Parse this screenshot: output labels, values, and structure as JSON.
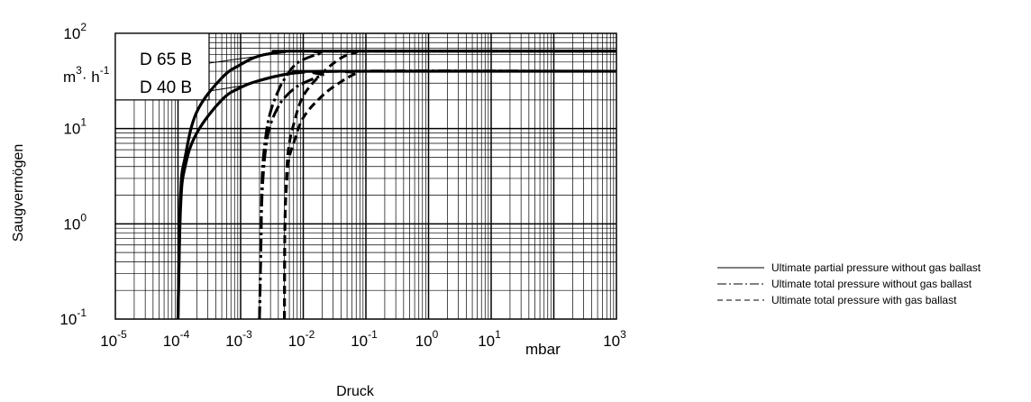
{
  "chart_data": {
    "type": "line",
    "title": "",
    "xlabel": "Druck",
    "ylabel": "Saugvermögen",
    "x_unit": "mbar",
    "y_unit": {
      "base": "m³·h",
      "exp": "-1",
      "prefix": "m",
      "prefix_exp": "3",
      "mid": "· h"
    },
    "x_scale": "log",
    "y_scale": "log",
    "xlim": [
      1e-05,
      1000
    ],
    "ylim": [
      0.1,
      100
    ],
    "grid": true,
    "x_ticks": [
      {
        "base": "10",
        "exp": "-5",
        "value": 1e-05
      },
      {
        "base": "10",
        "exp": "-4",
        "value": 0.0001
      },
      {
        "base": "10",
        "exp": "-3",
        "value": 0.001
      },
      {
        "base": "10",
        "exp": "-2",
        "value": 0.01
      },
      {
        "base": "10",
        "exp": "-1",
        "value": 0.1
      },
      {
        "base": "10",
        "exp": "0",
        "value": 1
      },
      {
        "base": "10",
        "exp": "1",
        "value": 10
      },
      {
        "base": "10",
        "exp": "3",
        "value": 1000
      }
    ],
    "y_ticks": [
      {
        "base": "10",
        "exp": "-1",
        "value": 0.1
      },
      {
        "base": "10",
        "exp": "0",
        "value": 1
      },
      {
        "base": "10",
        "exp": "1",
        "value": 10
      },
      {
        "base": "10",
        "exp": "2",
        "value": 100
      }
    ],
    "curve_labels": [
      {
        "text": "D 65 B",
        "target_y": 65
      },
      {
        "text": "D 40 B",
        "target_y": 40
      }
    ],
    "series": [
      {
        "style": "solid",
        "model": "D 65 B",
        "p0": 0.0001,
        "vmax": 65,
        "points": [
          [
            0.0001,
            0.1
          ],
          [
            0.00011,
            2
          ],
          [
            0.00013,
            5
          ],
          [
            0.0002,
            15
          ],
          [
            0.0005,
            34
          ],
          [
            0.001,
            47
          ],
          [
            0.002,
            58
          ],
          [
            0.005,
            64
          ],
          [
            0.01,
            65
          ],
          [
            1000,
            65
          ]
        ]
      },
      {
        "style": "solid",
        "model": "D 40 B",
        "p0": 0.0001,
        "vmax": 40,
        "points": [
          [
            0.0001,
            0.1
          ],
          [
            0.00011,
            1.5
          ],
          [
            0.00013,
            4
          ],
          [
            0.0002,
            9
          ],
          [
            0.0005,
            20
          ],
          [
            0.001,
            27
          ],
          [
            0.002,
            32
          ],
          [
            0.005,
            37
          ],
          [
            0.01,
            39
          ],
          [
            0.02,
            40
          ],
          [
            1000,
            40
          ]
        ]
      },
      {
        "style": "dashdot",
        "model": "D 65 B",
        "p0": 0.002,
        "vmax": 65,
        "points": [
          [
            0.002,
            0.1
          ],
          [
            0.0021,
            0.5
          ],
          [
            0.0022,
            3
          ],
          [
            0.0025,
            8
          ],
          [
            0.003,
            15
          ],
          [
            0.004,
            25
          ],
          [
            0.005,
            33
          ],
          [
            0.007,
            45
          ],
          [
            0.01,
            53
          ],
          [
            0.02,
            62
          ],
          [
            0.04,
            65
          ],
          [
            1000,
            65
          ]
        ]
      },
      {
        "style": "dashdot",
        "model": "D 40 B",
        "p0": 0.002,
        "vmax": 40,
        "points": [
          [
            0.002,
            0.1
          ],
          [
            0.0021,
            0.5
          ],
          [
            0.0022,
            2
          ],
          [
            0.0025,
            6
          ],
          [
            0.003,
            11
          ],
          [
            0.004,
            17
          ],
          [
            0.005,
            21
          ],
          [
            0.007,
            26
          ],
          [
            0.01,
            30
          ],
          [
            0.02,
            36
          ],
          [
            0.04,
            40
          ],
          [
            1000,
            40
          ]
        ]
      },
      {
        "style": "dashed",
        "model": "D 65 B",
        "p0": 0.005,
        "vmax": 65,
        "points": [
          [
            0.005,
            0.1
          ],
          [
            0.0051,
            1
          ],
          [
            0.0055,
            4
          ],
          [
            0.006,
            7
          ],
          [
            0.007,
            11
          ],
          [
            0.01,
            22
          ],
          [
            0.02,
            38
          ],
          [
            0.04,
            55
          ],
          [
            0.07,
            63
          ],
          [
            0.1,
            65
          ],
          [
            1000,
            65
          ]
        ]
      },
      {
        "style": "dashed",
        "model": "D 40 B",
        "p0": 0.005,
        "vmax": 40,
        "points": [
          [
            0.005,
            0.1
          ],
          [
            0.0051,
            1
          ],
          [
            0.0055,
            3
          ],
          [
            0.006,
            5
          ],
          [
            0.007,
            7
          ],
          [
            0.01,
            13
          ],
          [
            0.02,
            22
          ],
          [
            0.04,
            31
          ],
          [
            0.07,
            38
          ],
          [
            0.1,
            40
          ],
          [
            1000,
            40
          ]
        ]
      }
    ],
    "legend": {
      "placement": "right",
      "entries": [
        {
          "style": "solid",
          "label": "Ultimate partial pressure without gas ballast"
        },
        {
          "style": "dashdot",
          "label": "Ultimate total pressure without gas ballast"
        },
        {
          "style": "dashed",
          "label": "Ultimate total pressure with gas ballast"
        }
      ]
    },
    "colors": {
      "line": "#000000",
      "grid": "#000000",
      "background": "#ffffff"
    }
  }
}
